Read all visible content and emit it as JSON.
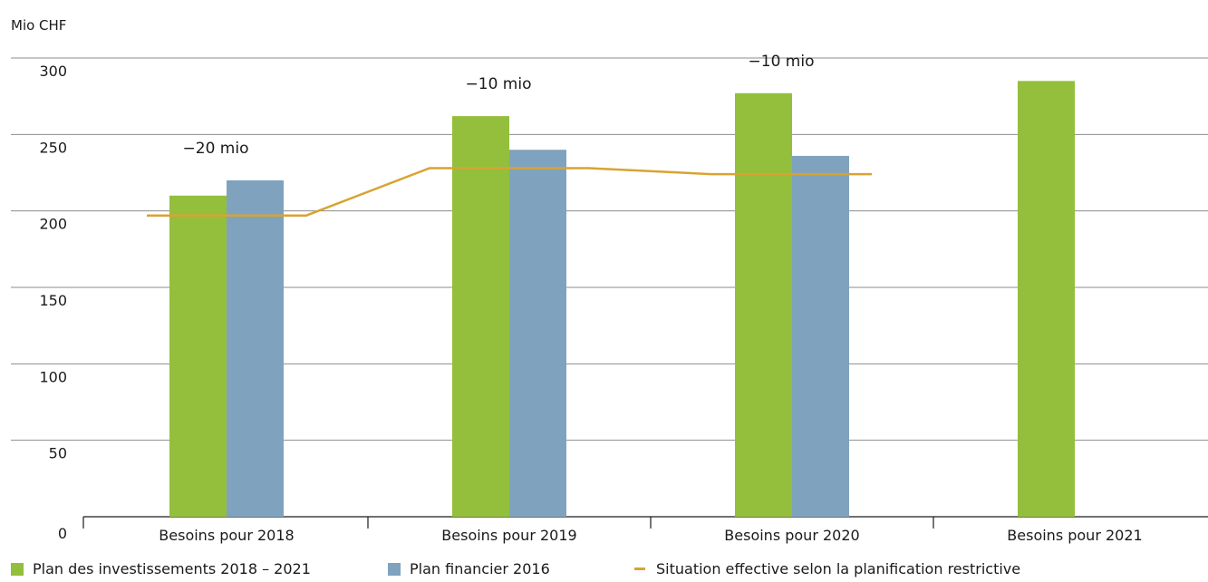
{
  "chart_data": {
    "type": "bar",
    "ylabel": "Mio CHF",
    "ylim": [
      0,
      300
    ],
    "yticks": [
      0,
      50,
      100,
      150,
      200,
      250,
      300
    ],
    "grid": true,
    "legend_position": "bottom",
    "categories": [
      "Besoins pour 2018",
      "Besoins pour 2019",
      "Besoins pour 2020",
      "Besoins pour 2021"
    ],
    "series": [
      {
        "name": "Plan des investissements 2018 – 2021",
        "type": "bar",
        "color": "#93bf3c",
        "values": [
          210,
          262,
          277,
          285
        ]
      },
      {
        "name": "Plan financier 2016",
        "type": "bar",
        "color": "#7fa3bf",
        "values": [
          220,
          240,
          236,
          null
        ]
      },
      {
        "name": "Situation effective selon la planification restrictive",
        "type": "line",
        "color": "#d9a331",
        "points": [
          {
            "x": 0,
            "y": 197
          },
          {
            "x": 1,
            "y": 197
          },
          {
            "x": 2,
            "y": 228
          },
          {
            "x": 3,
            "y": 228
          },
          {
            "x": 4,
            "y": 224
          },
          {
            "x": 5,
            "y": 224
          }
        ]
      }
    ],
    "annotations": [
      {
        "category_index": 0,
        "text": "−20 mio"
      },
      {
        "category_index": 1,
        "text": "−10 mio"
      },
      {
        "category_index": 2,
        "text": "−10 mio"
      }
    ]
  }
}
